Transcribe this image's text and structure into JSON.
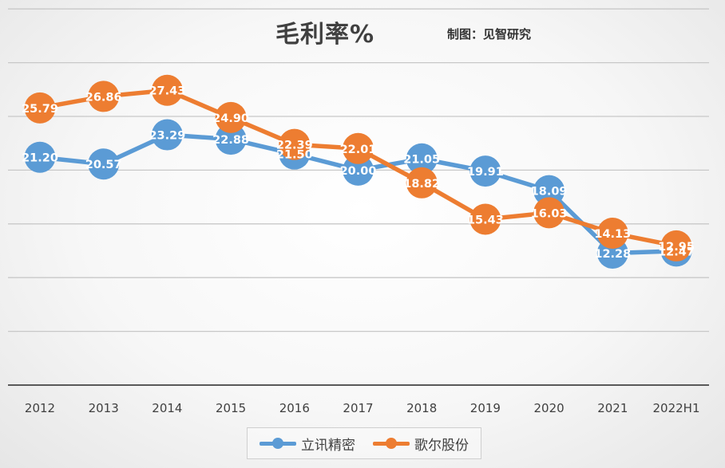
{
  "title": "毛利率%",
  "source_note": "制图：见智研究",
  "colors": {
    "series_a": "#5B9BD5",
    "series_b": "#ED7D31",
    "grid": "#c8c8c8",
    "axis": "#595959",
    "label_text": "#ffffff"
  },
  "chart_data": {
    "type": "line",
    "title": "毛利率%",
    "x": [
      "2012",
      "2013",
      "2014",
      "2015",
      "2016",
      "2017",
      "2018",
      "2019",
      "2020",
      "2021",
      "2022H1"
    ],
    "series": [
      {
        "name": "立讯精密",
        "values": [
          21.2,
          20.57,
          23.29,
          22.88,
          21.5,
          20.0,
          21.05,
          19.91,
          18.09,
          12.28,
          12.47
        ],
        "labels": [
          "21.20",
          "20.57",
          "23.29",
          "22.88",
          "21.50",
          "20.00",
          "21.05",
          "19.91",
          "18.09",
          "12.28",
          "12.47"
        ]
      },
      {
        "name": "歌尔股份",
        "values": [
          25.79,
          26.86,
          27.43,
          24.9,
          22.39,
          22.01,
          18.82,
          15.43,
          16.03,
          14.13,
          12.95
        ],
        "labels": [
          "25.79",
          "26.86",
          "27.43",
          "24.90",
          "22.39",
          "22.01",
          "18.82",
          "15.43",
          "16.03",
          "14.13",
          "12.95"
        ]
      }
    ],
    "ylim": [
      0,
      35
    ],
    "grid": true,
    "legend_position": "bottom"
  }
}
